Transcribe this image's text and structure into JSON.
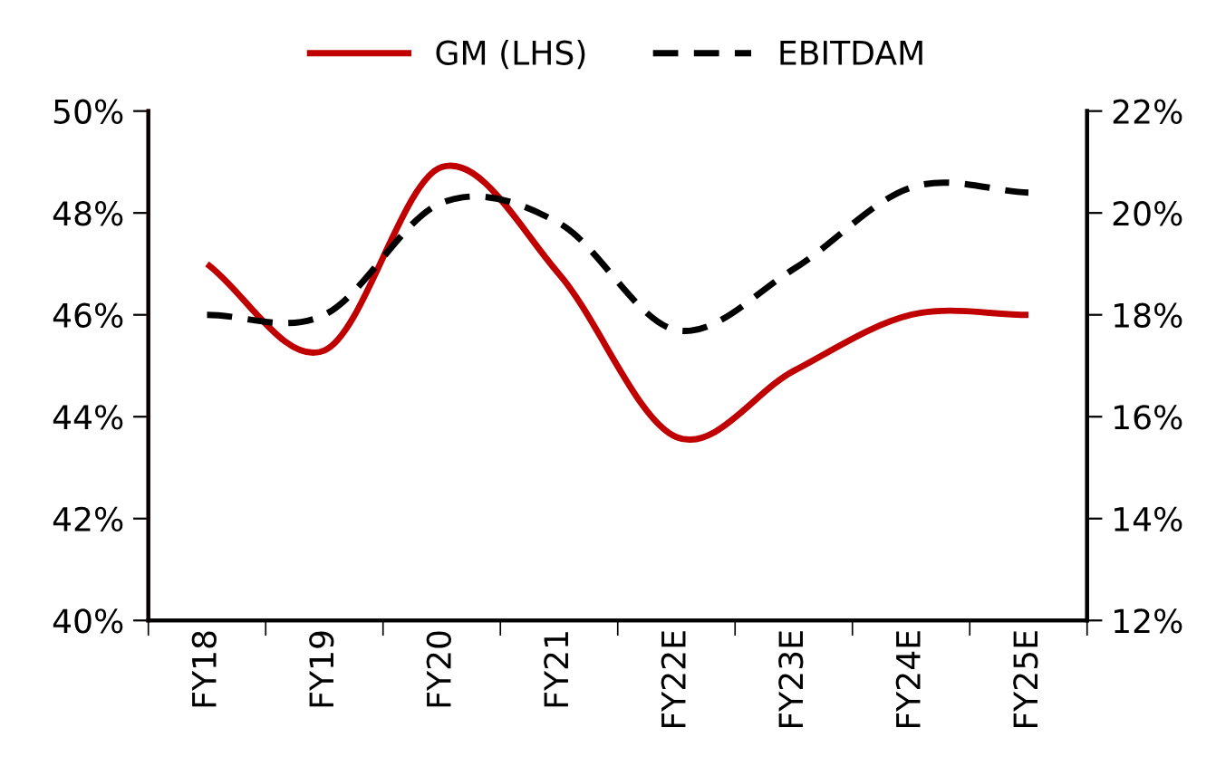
{
  "chart_data": {
    "type": "line",
    "categories": [
      "FY18",
      "FY19",
      "FY20",
      "FY21",
      "FY22E",
      "FY23E",
      "FY24E",
      "FY25E"
    ],
    "series": [
      {
        "name": "GM (LHS)",
        "color": "#c00000",
        "values": [
          47.0,
          45.3,
          48.9,
          46.8,
          43.6,
          44.9,
          46.0,
          46.0
        ],
        "line_style": "solid"
      },
      {
        "name": "EBITDAM",
        "color": "#000000",
        "values": [
          18.0,
          18.0,
          20.2,
          19.8,
          17.7,
          18.9,
          20.5,
          20.4
        ],
        "axis": "y2",
        "line_style": "dashed"
      }
    ],
    "ylim": [
      40,
      50
    ],
    "yticks": [
      {
        "value": 40,
        "label": "40%"
      },
      {
        "value": 42,
        "label": "42%"
      },
      {
        "value": 44,
        "label": "44%"
      },
      {
        "value": 46,
        "label": "46%"
      },
      {
        "value": 48,
        "label": "48%"
      },
      {
        "value": 50,
        "label": "50%"
      }
    ],
    "y2lim": [
      12,
      22
    ],
    "y2ticks": [
      {
        "value": 12,
        "label": "12%"
      },
      {
        "value": 14,
        "label": "14%"
      },
      {
        "value": 16,
        "label": "16%"
      },
      {
        "value": 18,
        "label": "18%"
      },
      {
        "value": 20,
        "label": "20%"
      },
      {
        "value": 22,
        "label": "22%"
      }
    ],
    "legend": "top",
    "grid": false,
    "marker": "none"
  }
}
